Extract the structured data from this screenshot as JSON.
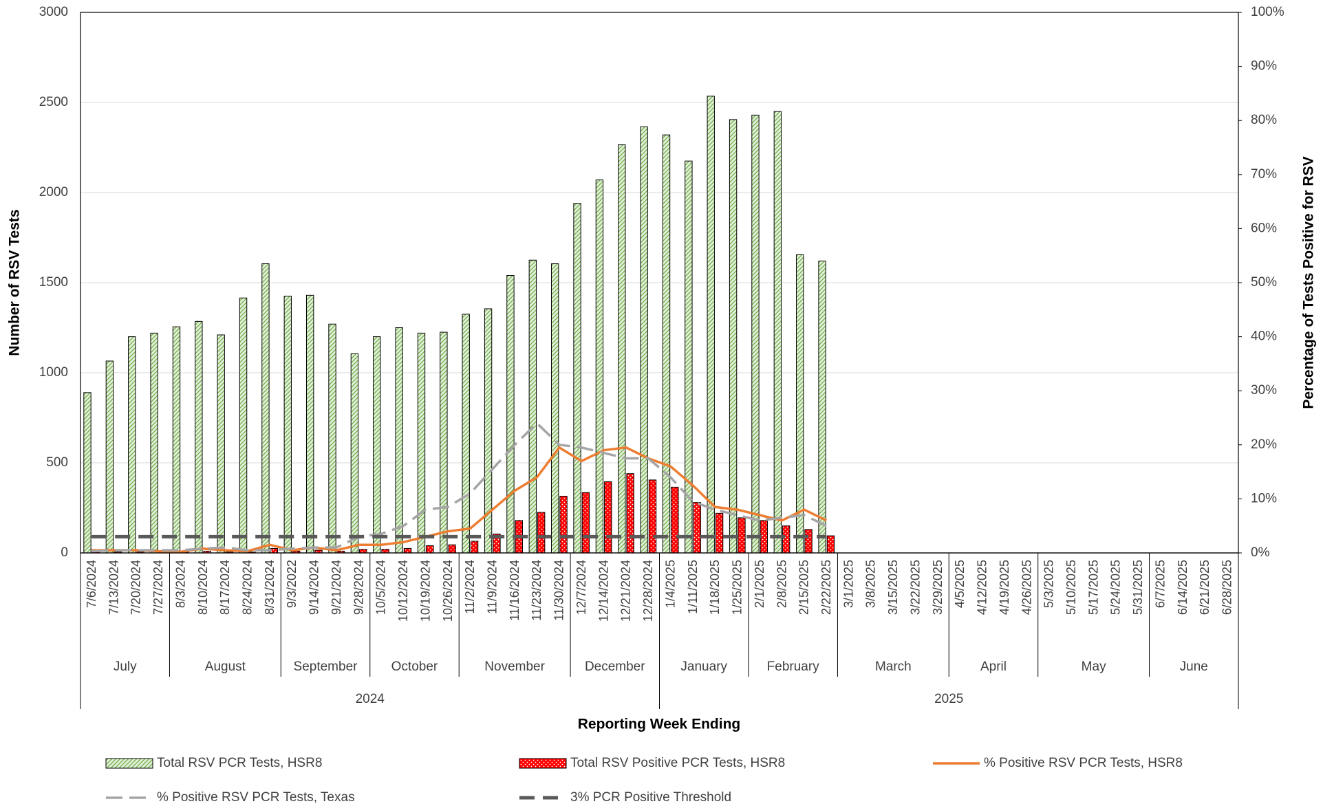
{
  "chart_data": {
    "type": "bar",
    "x_label": "Reporting Week Ending",
    "y_label": "Number of RSV Tests",
    "y2_label": "Percentage of Tests Positive for RSV",
    "categories": [
      "7/6/2024",
      "7/13/2024",
      "7/20/2024",
      "7/27/2024",
      "8/3/2024",
      "8/10/2024",
      "8/17/2024",
      "8/24/2024",
      "8/31/2024",
      "9/3/2022",
      "9/14/2024",
      "9/21/2024",
      "9/28/2024",
      "10/5/2024",
      "10/12/2024",
      "10/19/2024",
      "10/26/2024",
      "11/2/2024",
      "11/9/2024",
      "11/16/2024",
      "11/23/2024",
      "11/30/2024",
      "12/7/2024",
      "12/14/2024",
      "12/21/2024",
      "12/28/2024",
      "1/4/2025",
      "1/11/2025",
      "1/18/2025",
      "1/25/2025",
      "2/1/2025",
      "2/8/2025",
      "2/15/2025",
      "2/22/2025",
      "3/1/2025",
      "3/8/2025",
      "3/15/2025",
      "3/22/2025",
      "3/29/2025",
      "4/5/2025",
      "4/12/2025",
      "4/19/2025",
      "4/26/2025",
      "5/3/2025",
      "5/10/2025",
      "5/17/2025",
      "5/24/2025",
      "5/31/2025",
      "6/7/2025",
      "6/14/2025",
      "6/21/2025",
      "6/28/2025"
    ],
    "months": [
      "July",
      "August",
      "September",
      "October",
      "November",
      "December",
      "January",
      "February",
      "March",
      "April",
      "May",
      "June"
    ],
    "years": [
      "2024",
      "2025"
    ],
    "ylim": [
      0,
      3000
    ],
    "yticks": [
      0,
      500,
      1000,
      1500,
      2000,
      2500,
      3000
    ],
    "y2lim": [
      0,
      100
    ],
    "y2ticks": [
      {
        "value": 0,
        "label": "0%"
      },
      {
        "value": 10,
        "label": "10%"
      },
      {
        "value": 20,
        "label": "20%"
      },
      {
        "value": 30,
        "label": "30%"
      },
      {
        "value": 40,
        "label": "40%"
      },
      {
        "value": 50,
        "label": "50%"
      },
      {
        "value": 60,
        "label": "60%"
      },
      {
        "value": 70,
        "label": "70%"
      },
      {
        "value": 80,
        "label": "80%"
      },
      {
        "value": 90,
        "label": "90%"
      },
      {
        "value": 100,
        "label": "100%"
      }
    ],
    "grid": true,
    "series": [
      {
        "name": "Total RSV PCR Tests, HSR8",
        "type": "bar",
        "pattern": "hatch",
        "color": "#70ad47",
        "values": [
          890,
          1065,
          1200,
          1220,
          1255,
          1285,
          1210,
          1415,
          1605,
          1425,
          1430,
          1270,
          1105,
          1200,
          1250,
          1220,
          1225,
          1325,
          1355,
          1540,
          1625,
          1605,
          1940,
          2070,
          2265,
          2365,
          2320,
          2175,
          2535,
          2405,
          2430,
          2450,
          1655,
          1620,
          null,
          null,
          null,
          null,
          null,
          null,
          null,
          null,
          null,
          null,
          null,
          null,
          null,
          null,
          null,
          null,
          null,
          null
        ]
      },
      {
        "name": "Total RSV Positive PCR Tests, HSR8",
        "type": "bar",
        "pattern": "dots",
        "color": "#ff0000",
        "values": [
          5,
          5,
          5,
          5,
          5,
          10,
          5,
          5,
          25,
          10,
          15,
          10,
          20,
          20,
          25,
          40,
          45,
          65,
          105,
          180,
          225,
          315,
          335,
          395,
          440,
          405,
          365,
          280,
          220,
          195,
          180,
          150,
          130,
          95,
          null,
          null,
          null,
          null,
          null,
          null,
          null,
          null,
          null,
          null,
          null,
          null,
          null,
          null,
          null,
          null,
          null,
          null
        ]
      },
      {
        "name": "% Positive RSV PCR Tests, HSR8",
        "type": "line",
        "axis": "y2",
        "line_style": "solid",
        "color": "#ed7d31",
        "values": [
          0.5,
          0.5,
          0.5,
          0.3,
          0.2,
          0.8,
          0.5,
          0.3,
          1.5,
          0.5,
          1,
          0.5,
          1.5,
          1.5,
          2,
          3,
          4,
          4.5,
          8,
          11.5,
          14,
          19.5,
          17,
          19,
          19.5,
          17.5,
          16,
          12.5,
          8.5,
          8,
          7,
          6,
          8,
          6,
          null,
          null,
          null,
          null,
          null,
          null,
          null,
          null,
          null,
          null,
          null,
          null,
          null,
          null,
          null,
          null,
          null,
          null
        ]
      },
      {
        "name": "% Positive RSV PCR Tests, Texas",
        "type": "line",
        "axis": "y2",
        "line_style": "dashed",
        "color": "#a5a5a5",
        "values": [
          0.3,
          0.5,
          0.5,
          0.5,
          0.5,
          0.8,
          1,
          0.5,
          0.5,
          0.8,
          1,
          1,
          3,
          3.5,
          5,
          8,
          8.5,
          11,
          15.5,
          20,
          24,
          20,
          19.5,
          18.5,
          17.5,
          17.5,
          14,
          9.5,
          8,
          7,
          6,
          6.5,
          7,
          5,
          null,
          null,
          null,
          null,
          null,
          null,
          null,
          null,
          null,
          null,
          null,
          null,
          null,
          null,
          null,
          null,
          null,
          null
        ]
      },
      {
        "name": "3% PCR Positive Threshold",
        "type": "line",
        "axis": "y2",
        "line_style": "dashed",
        "color": "#595959",
        "values": [
          3,
          3,
          3,
          3,
          3,
          3,
          3,
          3,
          3,
          3,
          3,
          3,
          3,
          3,
          3,
          3,
          3,
          3,
          3,
          3,
          3,
          3,
          3,
          3,
          3,
          3,
          3,
          3,
          3,
          3,
          3,
          3,
          3,
          3,
          null,
          null,
          null,
          null,
          null,
          null,
          null,
          null,
          null,
          null,
          null,
          null,
          null,
          null,
          null,
          null,
          null,
          null
        ]
      }
    ]
  }
}
